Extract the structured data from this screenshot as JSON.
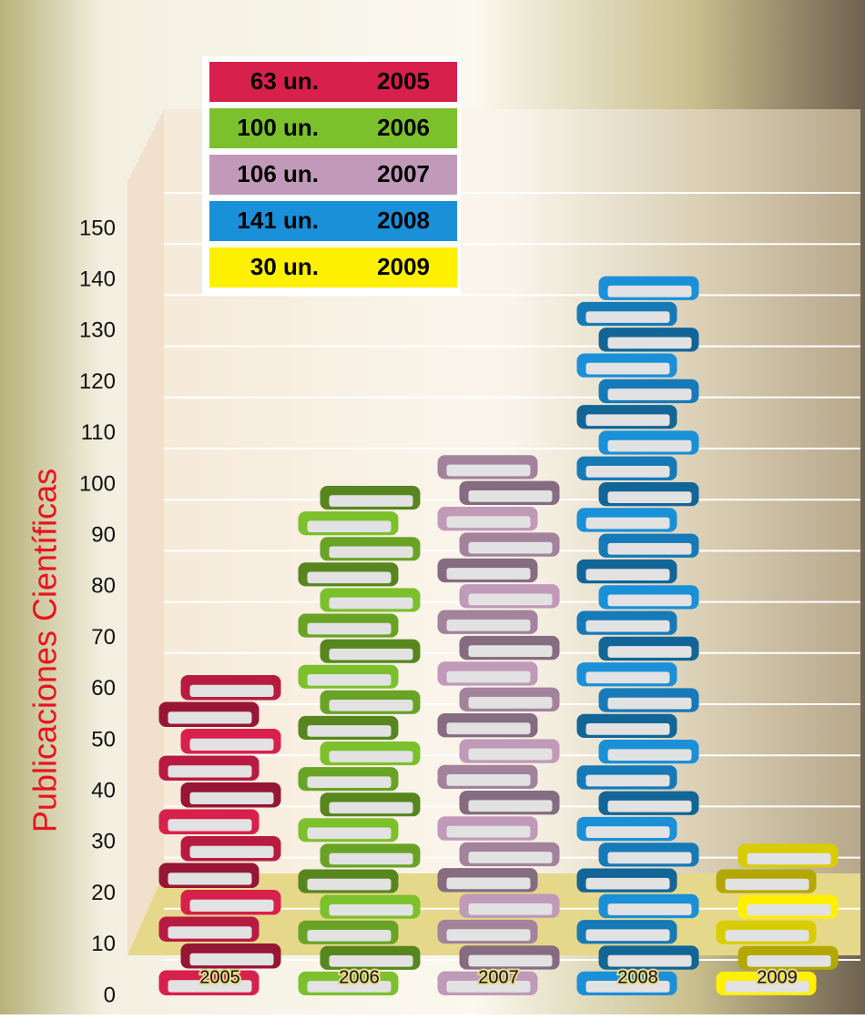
{
  "chart_data": {
    "type": "bar",
    "y_label": "Publicaciones Científicas",
    "categories": [
      "2005",
      "2006",
      "2007",
      "2008",
      "2009"
    ],
    "values": [
      63,
      100,
      106,
      141,
      30
    ],
    "value_labels": [
      "63 un.",
      "100 un.",
      "106 un.",
      "141 un.",
      "30 un."
    ],
    "colors": [
      "#d8204c",
      "#7cc02c",
      "#c09ab8",
      "#1a90d8",
      "#fff000"
    ],
    "ylim": [
      0,
      150
    ],
    "yticks": [
      0,
      10,
      20,
      30,
      40,
      50,
      60,
      70,
      80,
      90,
      100,
      110,
      120,
      130,
      140,
      150
    ]
  }
}
